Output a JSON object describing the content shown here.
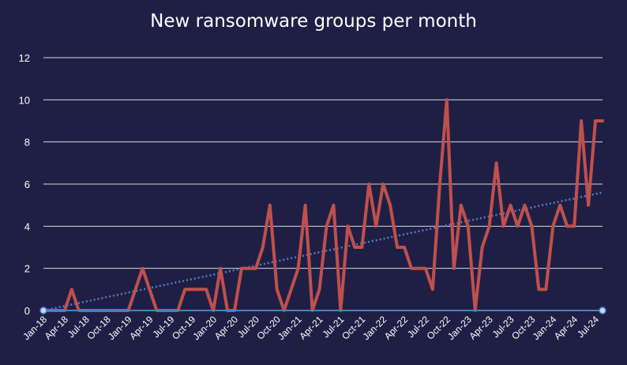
{
  "chart_data": {
    "type": "line",
    "title": "New ransomware groups per month",
    "xlabel": "",
    "ylabel": "",
    "ylim": [
      0,
      12
    ],
    "yticks": [
      "0",
      "2",
      "4",
      "6",
      "8",
      "10",
      "12"
    ],
    "grid": true,
    "x_tick_labels": [
      "Jan-18",
      "Apr-18",
      "Jul-18",
      "Oct-18",
      "Jan-19",
      "Apr-19",
      "Jul-19",
      "Oct-19",
      "Jan-20",
      "Apr-20",
      "Jul-20",
      "Oct-20",
      "Jan-21",
      "Apr-21",
      "Jul-21",
      "Oct-21",
      "Jan-22",
      "Apr-22",
      "Jul-22",
      "Oct-22",
      "Jan-23",
      "Apr-23",
      "Jul-23",
      "Oct-23",
      "Jan-24",
      "Apr-24",
      "Jul-24"
    ],
    "x": [
      "Jan-18",
      "Feb-18",
      "Mar-18",
      "Apr-18",
      "May-18",
      "Jun-18",
      "Jul-18",
      "Aug-18",
      "Sep-18",
      "Oct-18",
      "Nov-18",
      "Dec-18",
      "Jan-19",
      "Feb-19",
      "Mar-19",
      "Apr-19",
      "May-19",
      "Jun-19",
      "Jul-19",
      "Aug-19",
      "Sep-19",
      "Oct-19",
      "Nov-19",
      "Dec-19",
      "Jan-20",
      "Feb-20",
      "Mar-20",
      "Apr-20",
      "May-20",
      "Jun-20",
      "Jul-20",
      "Aug-20",
      "Sep-20",
      "Oct-20",
      "Nov-20",
      "Dec-20",
      "Jan-21",
      "Feb-21",
      "Mar-21",
      "Apr-21",
      "May-21",
      "Jun-21",
      "Jul-21",
      "Aug-21",
      "Sep-21",
      "Oct-21",
      "Nov-21",
      "Dec-21",
      "Jan-22",
      "Feb-22",
      "Mar-22",
      "Apr-22",
      "May-22",
      "Jun-22",
      "Jul-22",
      "Aug-22",
      "Sep-22",
      "Oct-22",
      "Nov-22",
      "Dec-22",
      "Jan-23",
      "Feb-23",
      "Mar-23",
      "Apr-23",
      "May-23",
      "Jun-23",
      "Jul-23",
      "Aug-23",
      "Sep-23",
      "Oct-23",
      "Nov-23",
      "Dec-23",
      "Jan-24",
      "Feb-24",
      "Mar-24",
      "Apr-24",
      "May-24",
      "Jun-24",
      "Jul-24",
      "Aug-24"
    ],
    "series": [
      {
        "values": [
          0,
          0,
          0,
          0,
          1,
          0,
          0,
          0,
          0,
          0,
          0,
          0,
          0,
          1,
          2,
          1,
          0,
          0,
          0,
          0,
          1,
          1,
          1,
          1,
          0,
          2,
          0,
          0,
          2,
          2,
          2,
          3,
          5,
          1,
          0,
          1,
          2,
          5,
          0,
          1,
          4,
          5,
          0,
          4,
          3,
          3,
          6,
          4,
          6,
          5,
          3,
          3,
          2,
          2,
          2,
          1,
          6,
          10,
          2,
          5,
          4,
          0,
          3,
          4,
          7,
          4,
          5,
          4,
          5,
          4,
          1,
          1,
          4,
          5,
          4,
          4,
          9,
          5,
          9,
          9
        ],
        "color": "#c0504d"
      }
    ],
    "trendline": {
      "style": "dotted",
      "color": "#4f81bd",
      "start": 0,
      "end": 5.6
    },
    "baseline_color": "#4f81bd",
    "background": "#1f1f45"
  }
}
